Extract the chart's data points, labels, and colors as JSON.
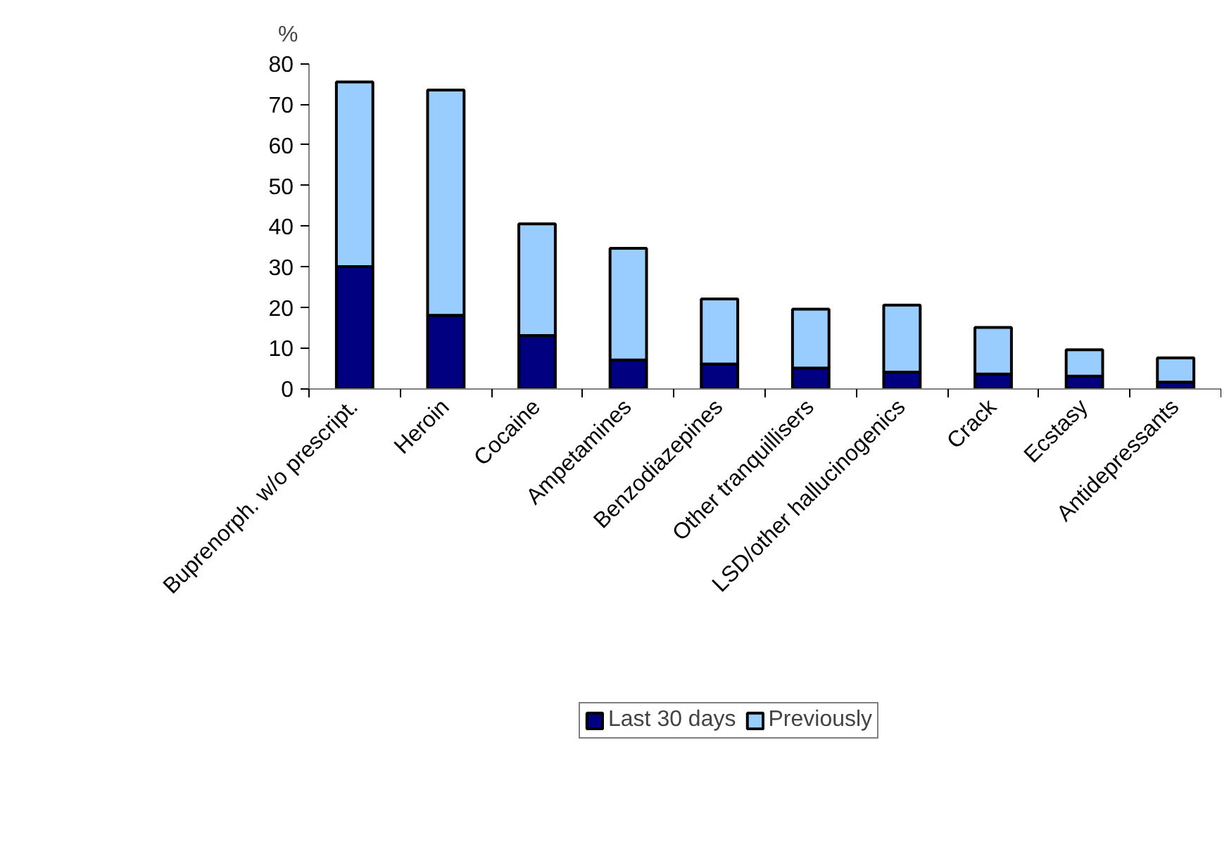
{
  "chart_data": {
    "type": "bar",
    "stacked": true,
    "ylabel": "%",
    "categories": [
      "Buprenorph. w/o prescript.",
      "Heroin",
      "Cocaine",
      "Ampetamines",
      "Benzodiazepines",
      "Other tranquillisers",
      "LSD/other hallucinogenics",
      "Crack",
      "Ecstasy",
      "Antidepressants"
    ],
    "series": [
      {
        "name": "Last 30 days",
        "color": "#000080",
        "values": [
          30,
          18,
          13,
          7,
          6,
          5,
          4,
          3.5,
          3,
          1.5
        ]
      },
      {
        "name": "Previously",
        "color": "#99ccff",
        "values": [
          45.5,
          55.5,
          27.5,
          27.5,
          16,
          14.5,
          16.5,
          11.5,
          6.5,
          6
        ]
      }
    ],
    "ylim": [
      0,
      80
    ],
    "yticks": [
      0,
      10,
      20,
      30,
      40,
      50,
      60,
      70,
      80
    ],
    "grid": false,
    "legend": "bottom"
  }
}
